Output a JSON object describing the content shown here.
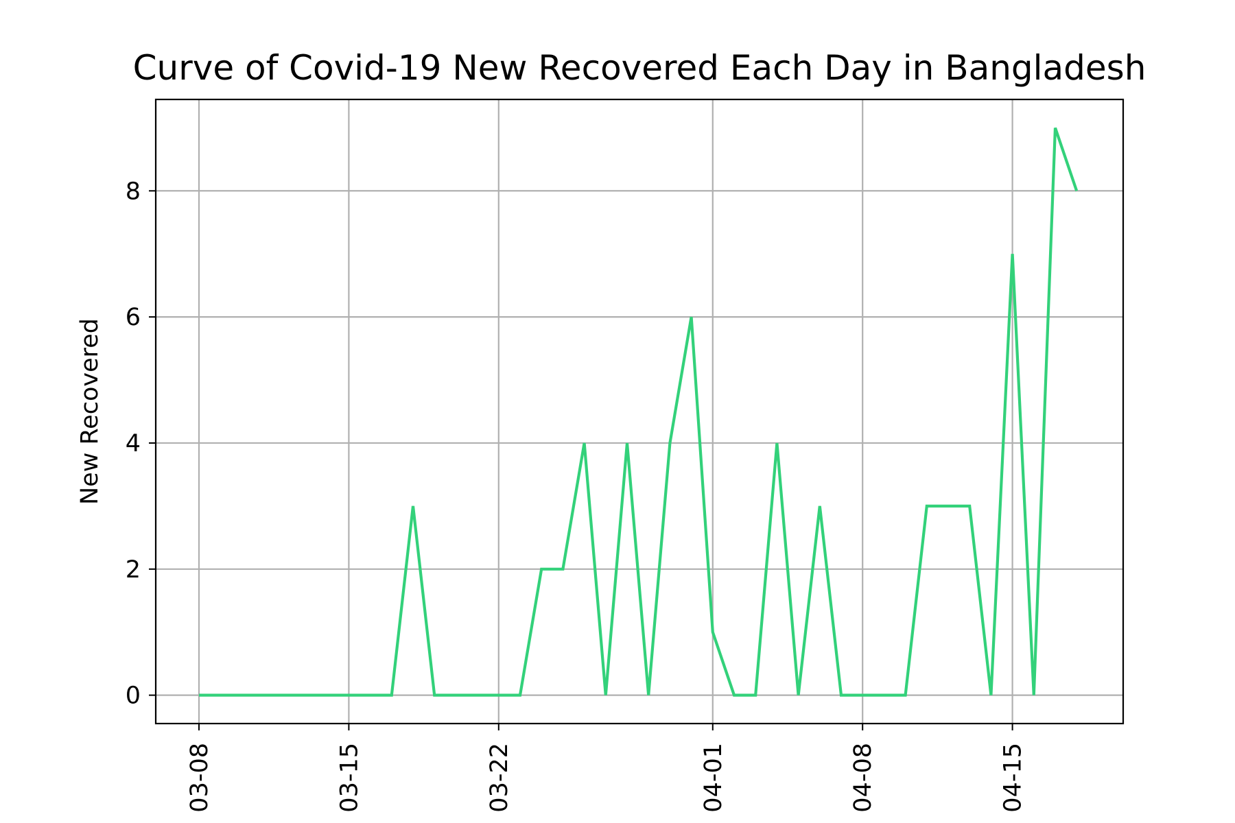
{
  "chart_data": {
    "type": "line",
    "title": "Curve of Covid-19 New Recovered Each Day in Bangladesh",
    "xlabel": "",
    "ylabel": "New Recovered",
    "x_tick_labels": [
      "03-08",
      "03-15",
      "03-22",
      "04-01",
      "04-08",
      "04-15"
    ],
    "y_ticks": [
      0,
      2,
      4,
      6,
      8
    ],
    "ylim": [
      -0.45,
      9.45
    ],
    "grid": true,
    "line_color": "#33d17a",
    "series": [
      {
        "x": [
          "2020-03-08",
          "2020-03-09",
          "2020-03-10",
          "2020-03-11",
          "2020-03-12",
          "2020-03-13",
          "2020-03-14",
          "2020-03-15",
          "2020-03-16",
          "2020-03-17",
          "2020-03-18",
          "2020-03-19",
          "2020-03-20",
          "2020-03-21",
          "2020-03-22",
          "2020-03-23",
          "2020-03-24",
          "2020-03-25",
          "2020-03-26",
          "2020-03-27",
          "2020-03-28",
          "2020-03-29",
          "2020-03-30",
          "2020-03-31",
          "2020-04-01",
          "2020-04-02",
          "2020-04-03",
          "2020-04-04",
          "2020-04-05",
          "2020-04-06",
          "2020-04-07",
          "2020-04-08",
          "2020-04-09",
          "2020-04-10",
          "2020-04-11",
          "2020-04-12",
          "2020-04-13",
          "2020-04-14",
          "2020-04-15",
          "2020-04-16",
          "2020-04-17",
          "2020-04-18"
        ],
        "values": [
          0,
          0,
          0,
          0,
          0,
          0,
          0,
          0,
          0,
          0,
          3,
          0,
          0,
          0,
          0,
          0,
          2,
          2,
          4,
          0,
          4,
          0,
          4,
          6,
          1,
          0,
          0,
          4,
          0,
          3,
          0,
          0,
          0,
          0,
          3,
          3,
          3,
          0,
          7,
          0,
          9,
          8
        ]
      }
    ]
  }
}
